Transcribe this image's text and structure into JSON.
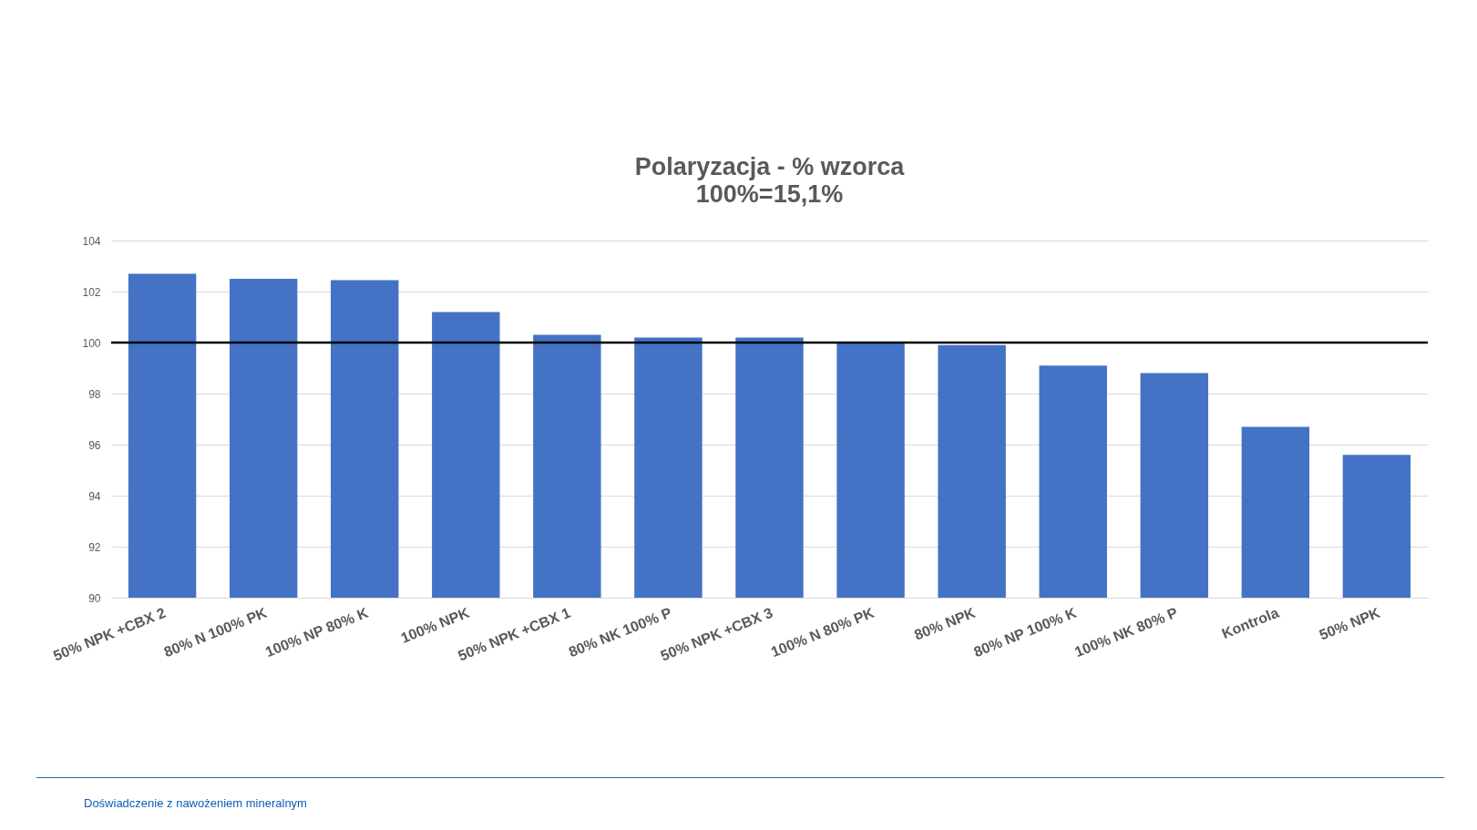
{
  "chart_data": {
    "type": "bar",
    "title": "Polaryzacja - % wzorca",
    "subtitle": "100%=15,1%",
    "categories": [
      "50% NPK +CBX 2",
      "80% N 100% PK",
      "100% NP 80% K",
      "100% NPK",
      "50% NPK +CBX 1",
      "80% NK 100% P",
      "50% NPK +CBX 3",
      "100% N 80% PK",
      "80% NPK",
      "80% NP 100% K",
      "100% NK 80% P",
      "Kontrola",
      "50% NPK"
    ],
    "values": [
      102.7,
      102.5,
      102.45,
      101.2,
      100.3,
      100.2,
      100.2,
      100.0,
      99.9,
      99.1,
      98.8,
      96.7,
      95.6
    ],
    "color": "#4472c4",
    "ylim": [
      90,
      104
    ],
    "yticks": [
      90,
      92,
      94,
      96,
      98,
      100,
      102,
      104
    ],
    "grid": "y",
    "ref_lines": [
      {
        "axis": "y",
        "value": 100,
        "color": "#000000"
      }
    ],
    "annotations": [
      "Doświadczenie z nawożeniem mineralnym"
    ]
  }
}
